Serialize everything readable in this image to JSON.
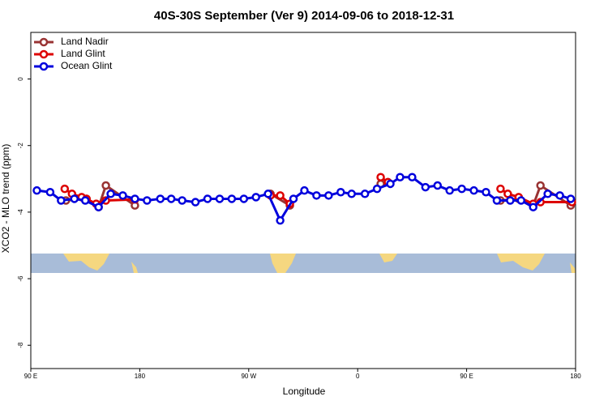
{
  "chart_data": {
    "type": "line",
    "title": "40S-30S September (Ver 9)   2014-09-06 to 2018-12-31",
    "xlabel": "Longitude",
    "ylabel": "XCO2 - MLO trend (ppm)",
    "xlim": [
      90,
      540
    ],
    "ylim": [
      -8.7,
      1.4
    ],
    "xticks": [
      {
        "value": 90,
        "label": "90 E"
      },
      180,
      {
        "value": 270,
        "label": "90 W"
      },
      {
        "value": 360,
        "label": "0"
      },
      {
        "value": 450,
        "label": "90 E"
      },
      {
        "value": 540,
        "label": "180"
      }
    ],
    "yticks": [
      0,
      -2,
      -4,
      -6,
      -8
    ],
    "legend": "top-left",
    "series": [
      {
        "name": "Land Nadir",
        "color": "#993333",
        "x": [
          119,
          136,
          146,
          152,
          176,
          null,
          288,
          304,
          null,
          379,
          385,
          null,
          478,
          493,
          505,
          511,
          536
        ],
        "values": [
          -3.65,
          -3.6,
          -3.85,
          -3.2,
          -3.8,
          null,
          -3.45,
          -3.8,
          null,
          -3.15,
          -3.1,
          null,
          -3.65,
          -3.6,
          -3.8,
          -3.2,
          -3.8
        ]
      },
      {
        "name": "Land Glint",
        "color": "#dd0000",
        "x": [
          118,
          124,
          132,
          136,
          144,
          152,
          176,
          null,
          288,
          296,
          304,
          null,
          379,
          385,
          null,
          478,
          484,
          493,
          505,
          511,
          537
        ],
        "values": [
          -3.3,
          -3.45,
          -3.55,
          -3.6,
          -3.75,
          -3.65,
          -3.62,
          null,
          -3.5,
          -3.5,
          -3.75,
          null,
          -2.95,
          -3.1,
          null,
          -3.3,
          -3.45,
          -3.55,
          -3.75,
          -3.7,
          -3.7
        ]
      },
      {
        "name": "Ocean Glint",
        "color": "#0000dd",
        "x": [
          95,
          106,
          115,
          126,
          135,
          146,
          156,
          166,
          176,
          186,
          197,
          206,
          215,
          226,
          236,
          246,
          256,
          266,
          276,
          286,
          296,
          307,
          316,
          326,
          336,
          346,
          355,
          366,
          376,
          387,
          395,
          405,
          416,
          426,
          436,
          446,
          456,
          466,
          475,
          486,
          495,
          505,
          517,
          527,
          536
        ],
        "values": [
          -3.35,
          -3.4,
          -3.65,
          -3.6,
          -3.65,
          -3.85,
          -3.45,
          -3.5,
          -3.6,
          -3.65,
          -3.6,
          -3.6,
          -3.65,
          -3.7,
          -3.6,
          -3.6,
          -3.6,
          -3.6,
          -3.55,
          -3.45,
          -4.25,
          -3.6,
          -3.35,
          -3.5,
          -3.5,
          -3.4,
          -3.45,
          -3.45,
          -3.3,
          -3.15,
          -2.95,
          -2.95,
          -3.25,
          -3.2,
          -3.35,
          -3.3,
          -3.35,
          -3.4,
          -3.65,
          -3.65,
          -3.65,
          -3.85,
          -3.45,
          -3.5,
          -3.6
        ]
      }
    ]
  }
}
